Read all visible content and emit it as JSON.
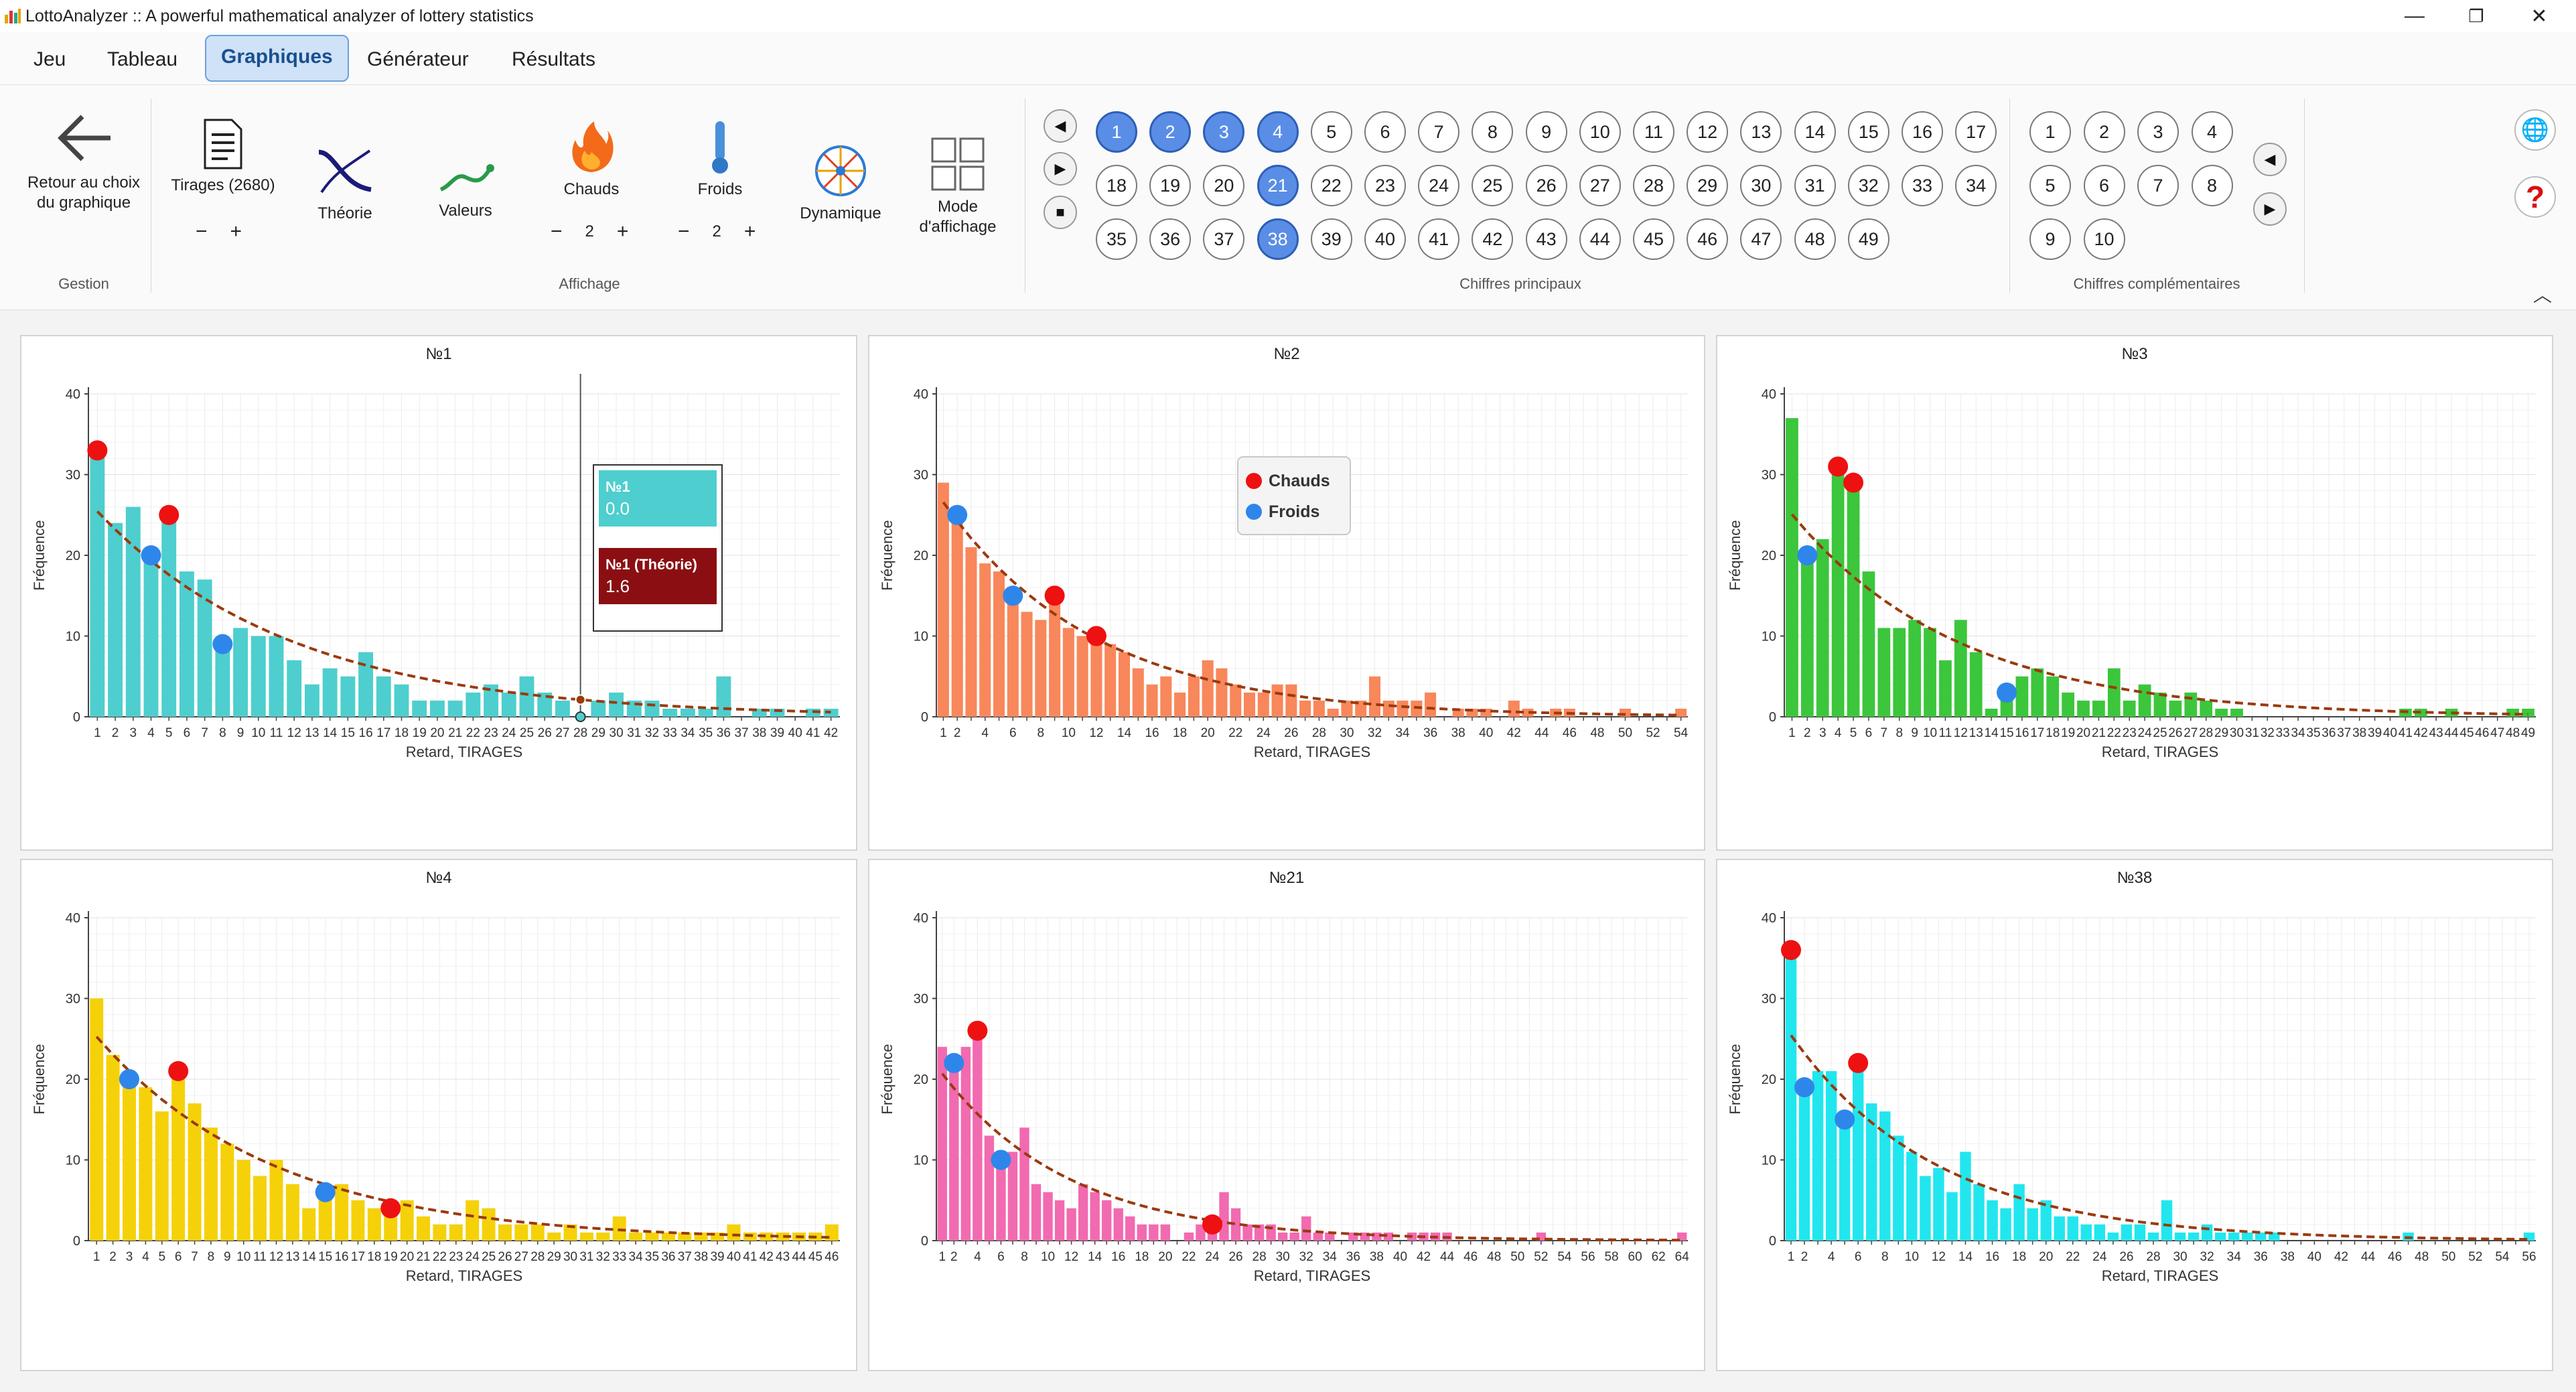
{
  "app": {
    "title": "LottoAnalyzer :: A powerful mathematical analyzer of lottery statistics"
  },
  "window": {
    "minimize": "—",
    "restore": "❐",
    "close": "✕"
  },
  "menu": [
    {
      "label": "Jeu"
    },
    {
      "label": "Tableau"
    },
    {
      "label": "Graphiques",
      "active": true
    },
    {
      "label": "Générateur"
    },
    {
      "label": "Résultats"
    }
  ],
  "ribbon": {
    "back_label": "Retour au choix du graphique",
    "tirages_label": "Tirages (2680)",
    "theorie_label": "Théorie",
    "valeurs_label": "Valeurs",
    "chauds_label": "Chauds",
    "chauds_value": "2",
    "froids_label": "Froids",
    "froids_value": "2",
    "dynamique_label": "Dynamique",
    "mode_label": "Mode d'affichage",
    "minus": "−",
    "plus": "+",
    "groups": {
      "gestion": "Gestion",
      "affichage": "Affichage",
      "principaux": "Chiffres principaux",
      "complementaires": "Chiffres complémentaires"
    },
    "collapse": "︿"
  },
  "main_numbers": [
    1,
    2,
    3,
    4,
    5,
    6,
    7,
    8,
    9,
    10,
    11,
    12,
    13,
    14,
    15,
    16,
    17,
    18,
    19,
    20,
    21,
    22,
    23,
    24,
    25,
    26,
    27,
    28,
    29,
    30,
    31,
    32,
    33,
    34,
    35,
    36,
    37,
    38,
    39,
    40,
    41,
    42,
    43,
    44,
    45,
    46,
    47,
    48,
    49
  ],
  "selected_numbers": [
    1,
    2,
    3,
    4,
    21,
    38
  ],
  "complementary_numbers": [
    1,
    2,
    3,
    4,
    5,
    6,
    7,
    8,
    9,
    10
  ],
  "playback": {
    "prev": "◀",
    "play": "▶",
    "stop": "■"
  },
  "compl_nav": {
    "prev": "◀",
    "next": "▶"
  },
  "help": {
    "globe": "🌐",
    "question": "?"
  },
  "colors": {
    "hot": "#ee1111",
    "cold": "#2f86ea",
    "theory": "#9a3a0e"
  },
  "chart_common": {
    "ylabel": "Fréquence",
    "xlabel": "Retard, TIRAGES",
    "yticks": [
      0,
      10,
      20,
      30,
      40
    ]
  },
  "legend": {
    "hot": "Chauds",
    "cold": "Froids"
  },
  "tooltip": {
    "series_label": "№1",
    "series_value": "0.0",
    "theory_label": "№1 (Théorie)",
    "theory_value": "1.6",
    "at_x": 28
  },
  "chart_data": [
    {
      "type": "bar",
      "title": "№1",
      "color": "#4ecece",
      "xmax": 42,
      "xtick_step": 1,
      "ylim": [
        0,
        40
      ],
      "theory_p": 0.088,
      "values": [
        33,
        24,
        26,
        20,
        25,
        18,
        17,
        9,
        11,
        10,
        10,
        7,
        4,
        6,
        5,
        8,
        5,
        4,
        2,
        2,
        2,
        3,
        4,
        3,
        5,
        3,
        2,
        0,
        2,
        3,
        2,
        2,
        1,
        1,
        1,
        5,
        0,
        1,
        1,
        0,
        1,
        1
      ],
      "hot": [
        1,
        5
      ],
      "cold": [
        4,
        8
      ]
    },
    {
      "type": "bar",
      "title": "№2",
      "color": "#f8875b",
      "xmax": 54,
      "xtick_step": 2,
      "ylim": [
        0,
        40
      ],
      "theory_p": 0.088,
      "values": [
        29,
        25,
        21,
        19,
        18,
        15,
        13,
        12,
        15,
        11,
        10,
        10,
        9,
        8,
        6,
        4,
        5,
        3,
        5,
        7,
        6,
        4,
        3,
        3,
        4,
        4,
        2,
        2,
        1,
        2,
        2,
        5,
        2,
        2,
        2,
        3,
        0,
        1,
        1,
        1,
        0,
        2,
        1,
        0,
        1,
        1,
        0,
        0,
        0,
        1,
        0,
        0,
        0,
        1
      ],
      "hot": [
        9,
        12
      ],
      "cold": [
        2,
        6
      ]
    },
    {
      "type": "bar",
      "title": "№3",
      "color": "#3cc63c",
      "xmax": 49,
      "xtick_step": 1,
      "ylim": [
        0,
        40
      ],
      "theory_p": 0.088,
      "values": [
        37,
        20,
        22,
        31,
        29,
        18,
        11,
        11,
        12,
        11,
        7,
        12,
        8,
        1,
        3,
        5,
        6,
        5,
        3,
        2,
        2,
        6,
        2,
        4,
        3,
        2,
        3,
        2,
        1,
        1,
        0,
        0,
        0,
        0,
        0,
        0,
        0,
        0,
        0,
        0,
        1,
        1,
        0,
        1,
        0,
        0,
        0,
        1,
        1
      ],
      "hot": [
        4,
        5
      ],
      "cold": [
        2,
        15
      ]
    },
    {
      "type": "bar",
      "title": "№4",
      "color": "#f5d10a",
      "xmax": 46,
      "xtick_step": 1,
      "ylim": [
        0,
        40
      ],
      "theory_p": 0.088,
      "values": [
        30,
        23,
        20,
        19,
        16,
        21,
        17,
        14,
        12,
        10,
        8,
        10,
        7,
        4,
        6,
        7,
        5,
        4,
        4,
        5,
        3,
        2,
        2,
        5,
        4,
        2,
        2,
        2,
        1,
        2,
        1,
        1,
        3,
        1,
        1,
        1,
        1,
        1,
        1,
        2,
        1,
        1,
        1,
        1,
        1,
        2
      ],
      "hot": [
        6,
        19
      ],
      "cold": [
        3,
        15
      ]
    },
    {
      "type": "bar",
      "title": "№21",
      "color": "#f26ab0",
      "xmax": 64,
      "xtick_step": 2,
      "ylim": [
        0,
        40
      ],
      "theory_p": 0.088,
      "values": [
        24,
        22,
        24,
        26,
        13,
        10,
        11,
        14,
        7,
        6,
        5,
        4,
        7,
        6,
        5,
        4,
        3,
        2,
        2,
        2,
        0,
        1,
        2,
        2,
        6,
        4,
        2,
        2,
        2,
        1,
        1,
        3,
        1,
        1,
        0,
        1,
        1,
        1,
        1,
        0,
        1,
        1,
        1,
        1,
        0,
        0,
        0,
        0,
        0,
        0,
        0,
        1,
        0,
        0,
        0,
        0,
        0,
        0,
        0,
        0,
        0,
        0,
        0,
        1
      ],
      "hot": [
        4,
        24
      ],
      "cold": [
        2,
        6
      ]
    },
    {
      "type": "bar",
      "title": "№38",
      "color": "#22e6ee",
      "xmax": 56,
      "xtick_step": 2,
      "ylim": [
        0,
        40
      ],
      "theory_p": 0.088,
      "values": [
        36,
        19,
        21,
        21,
        15,
        22,
        17,
        16,
        13,
        11,
        8,
        9,
        6,
        11,
        7,
        5,
        4,
        7,
        4,
        5,
        3,
        3,
        2,
        2,
        1,
        2,
        2,
        1,
        5,
        1,
        1,
        2,
        1,
        1,
        1,
        1,
        1,
        0,
        0,
        0,
        0,
        0,
        0,
        0,
        0,
        0,
        1,
        0,
        0,
        0,
        0,
        0,
        0,
        0,
        0,
        1
      ],
      "hot": [
        1,
        6
      ],
      "cold": [
        2,
        5
      ]
    }
  ]
}
